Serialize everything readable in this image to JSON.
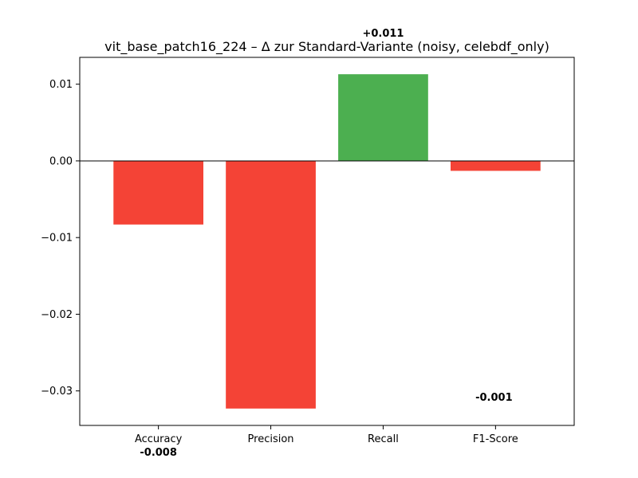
{
  "chart_data": {
    "type": "bar",
    "title": "vit_base_patch16_224 – Δ zur Standard-Variante (noisy, celebdf_only)",
    "xlabel": "",
    "ylabel": "",
    "categories": [
      "Accuracy",
      "Precision",
      "Recall",
      "F1-Score"
    ],
    "values": [
      -0.0083,
      -0.0323,
      0.0113,
      -0.0013
    ],
    "data_labels": [
      "-0.008",
      "",
      "+0.011",
      "-0.001"
    ],
    "yticks": [
      0.01,
      0.0,
      -0.01,
      -0.02,
      -0.03
    ],
    "ytick_labels": [
      "0.01",
      "0.00",
      "−0.01",
      "−0.02",
      "−0.03"
    ],
    "ylim": [
      -0.0345,
      0.0135
    ],
    "grid": false,
    "colors": {
      "positive": "#4caf50",
      "negative": "#f44336"
    }
  }
}
